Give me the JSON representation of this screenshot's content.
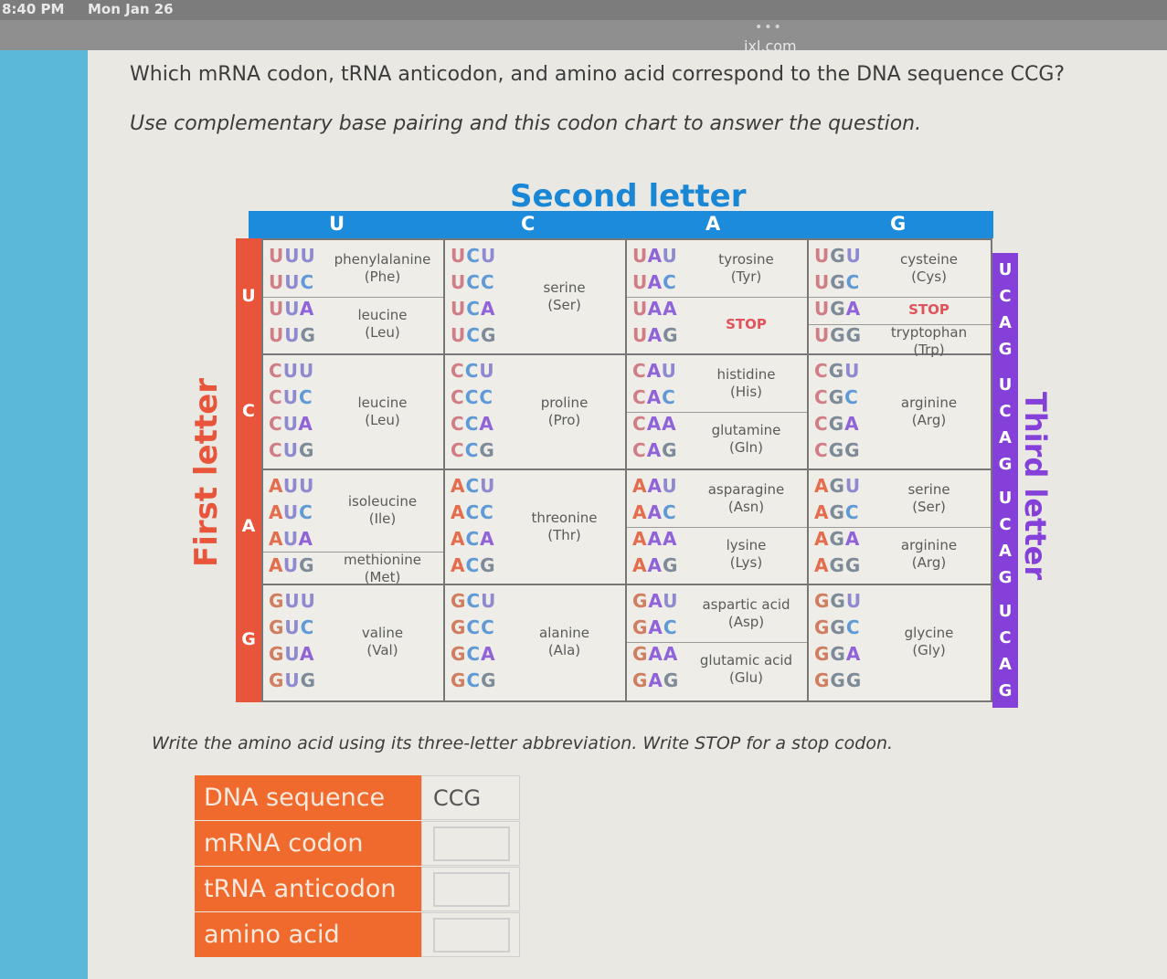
{
  "status_bar": {
    "time": "8:40 PM",
    "date": "Mon Jan 26"
  },
  "browser": {
    "dots": "•••",
    "url": "ixl.com"
  },
  "question": "Which mRNA codon, tRNA anticodon, and amino acid correspond to the DNA sequence CCG?",
  "instruction": "Use complementary base pairing and this codon chart to answer the question.",
  "chart": {
    "second_letter_title": "Second letter",
    "first_letter_title": "First letter",
    "third_letter_title": "Third letter",
    "second_letters": [
      "U",
      "C",
      "A",
      "G"
    ],
    "first_letters": [
      "U",
      "C",
      "A",
      "G"
    ],
    "third_letters": [
      "U",
      "C",
      "A",
      "G",
      "U",
      "C",
      "A",
      "G",
      "U",
      "C",
      "A",
      "G",
      "U",
      "C",
      "A",
      "G"
    ],
    "cells": [
      [
        {
          "codons": [
            "UUU",
            "UUC",
            "UUA",
            "UUG"
          ],
          "groups": [
            {
              "name": "phenylalanine",
              "abbr": "(Phe)"
            },
            {
              "name": "leucine",
              "abbr": "(Leu)"
            }
          ]
        },
        {
          "codons": [
            "UCU",
            "UCC",
            "UCA",
            "UCG"
          ],
          "groups": [
            {
              "name": "serine",
              "abbr": "(Ser)"
            }
          ]
        },
        {
          "codons": [
            "UAU",
            "UAC",
            "UAA",
            "UAG"
          ],
          "groups": [
            {
              "name": "tyrosine",
              "abbr": "(Tyr)"
            },
            {
              "name": "STOP",
              "abbr": ""
            }
          ]
        },
        {
          "codons": [
            "UGU",
            "UGC",
            "UGA",
            "UGG"
          ],
          "groups": [
            {
              "name": "cysteine",
              "abbr": "(Cys)"
            },
            {
              "name": "STOP",
              "abbr": ""
            },
            {
              "name": "tryptophan",
              "abbr": "(Trp)"
            }
          ]
        }
      ],
      [
        {
          "codons": [
            "CUU",
            "CUC",
            "CUA",
            "CUG"
          ],
          "groups": [
            {
              "name": "leucine",
              "abbr": "(Leu)"
            }
          ]
        },
        {
          "codons": [
            "CCU",
            "CCC",
            "CCA",
            "CCG"
          ],
          "groups": [
            {
              "name": "proline",
              "abbr": "(Pro)"
            }
          ]
        },
        {
          "codons": [
            "CAU",
            "CAC",
            "CAA",
            "CAG"
          ],
          "groups": [
            {
              "name": "histidine",
              "abbr": "(His)"
            },
            {
              "name": "glutamine",
              "abbr": "(Gln)"
            }
          ]
        },
        {
          "codons": [
            "CGU",
            "CGC",
            "CGA",
            "CGG"
          ],
          "groups": [
            {
              "name": "arginine",
              "abbr": "(Arg)"
            }
          ]
        }
      ],
      [
        {
          "codons": [
            "AUU",
            "AUC",
            "AUA",
            "AUG"
          ],
          "groups": [
            {
              "name": "isoleucine",
              "abbr": "(Ile)"
            },
            {
              "name": "methionine",
              "abbr": "(Met)"
            }
          ]
        },
        {
          "codons": [
            "ACU",
            "ACC",
            "ACA",
            "ACG"
          ],
          "groups": [
            {
              "name": "threonine",
              "abbr": "(Thr)"
            }
          ]
        },
        {
          "codons": [
            "AAU",
            "AAC",
            "AAA",
            "AAG"
          ],
          "groups": [
            {
              "name": "asparagine",
              "abbr": "(Asn)"
            },
            {
              "name": "lysine",
              "abbr": "(Lys)"
            }
          ]
        },
        {
          "codons": [
            "AGU",
            "AGC",
            "AGA",
            "AGG"
          ],
          "groups": [
            {
              "name": "serine",
              "abbr": "(Ser)"
            },
            {
              "name": "arginine",
              "abbr": "(Arg)"
            }
          ]
        }
      ],
      [
        {
          "codons": [
            "GUU",
            "GUC",
            "GUA",
            "GUG"
          ],
          "groups": [
            {
              "name": "valine",
              "abbr": "(Val)"
            }
          ]
        },
        {
          "codons": [
            "GCU",
            "GCC",
            "GCA",
            "GCG"
          ],
          "groups": [
            {
              "name": "alanine",
              "abbr": "(Ala)"
            }
          ]
        },
        {
          "codons": [
            "GAU",
            "GAC",
            "GAA",
            "GAG"
          ],
          "groups": [
            {
              "name": "aspartic acid",
              "abbr": "(Asp)"
            },
            {
              "name": "glutamic acid",
              "abbr": "(Glu)"
            }
          ]
        },
        {
          "codons": [
            "GGU",
            "GGC",
            "GGA",
            "GGG"
          ],
          "groups": [
            {
              "name": "glycine",
              "abbr": "(Gly)"
            }
          ]
        }
      ]
    ]
  },
  "instruction2": "Write the amino acid using its three-letter abbreviation. Write STOP for a stop codon.",
  "answer_table": {
    "rows": [
      {
        "label": "DNA sequence",
        "value": "CCG"
      },
      {
        "label": "mRNA codon",
        "value": ""
      },
      {
        "label": "tRNA anticodon",
        "value": ""
      },
      {
        "label": "amino acid",
        "value": ""
      }
    ]
  },
  "colors": {
    "second_bar": "#1c8bdc",
    "first_strip": "#e8553a",
    "third_strip": "#8440d8",
    "answer_label_bg": "#ef6a2c"
  }
}
